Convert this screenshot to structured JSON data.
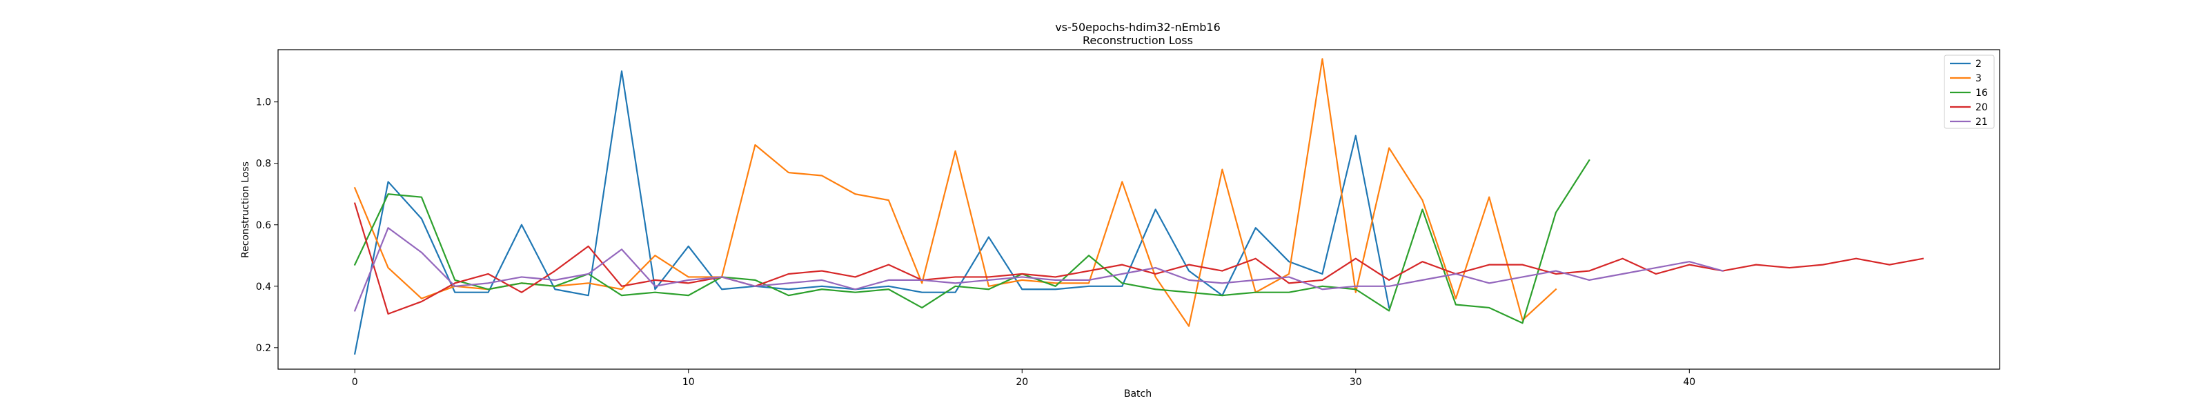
{
  "chart_data": {
    "type": "line",
    "title": "vs-50epochs-hdim32-nEmb16",
    "subtitle": "Reconstruction Loss",
    "xlabel": "Batch",
    "ylabel": "Reconstruction Loss",
    "xlim": [
      -2.3,
      49.3
    ],
    "ylim": [
      0.13,
      1.17
    ],
    "xticks": [
      0,
      10,
      20,
      30,
      40
    ],
    "yticks": [
      0.2,
      0.4,
      0.6,
      0.8,
      1.0
    ],
    "yticklabels": [
      "0.2",
      "0.4",
      "0.6",
      "0.8",
      "1.0"
    ],
    "grid": false,
    "legend_position": "top-right",
    "series": [
      {
        "name": "2",
        "color": "#1f77b4",
        "x": [
          0,
          1,
          2,
          3,
          4,
          5,
          6,
          7,
          8,
          9,
          10,
          11,
          12,
          13,
          14,
          15,
          16,
          17,
          18,
          19,
          20,
          21,
          22,
          23,
          24,
          25,
          26,
          27,
          28,
          29,
          30,
          31
        ],
        "values": [
          0.18,
          0.74,
          0.62,
          0.38,
          0.38,
          0.6,
          0.39,
          0.37,
          1.1,
          0.39,
          0.53,
          0.39,
          0.4,
          0.39,
          0.4,
          0.39,
          0.4,
          0.38,
          0.38,
          0.56,
          0.39,
          0.39,
          0.4,
          0.4,
          0.65,
          0.45,
          0.37,
          0.59,
          0.48,
          0.44,
          0.89,
          0.33
        ]
      },
      {
        "name": "3",
        "color": "#ff7f0e",
        "x": [
          0,
          1,
          2,
          3,
          4,
          5,
          6,
          7,
          8,
          9,
          10,
          11,
          12,
          13,
          14,
          15,
          16,
          17,
          18,
          19,
          20,
          21,
          22,
          23,
          24,
          25,
          26,
          27,
          28,
          29,
          30,
          31,
          32,
          33,
          34,
          35,
          36
        ],
        "values": [
          0.72,
          0.46,
          0.36,
          0.4,
          0.39,
          0.41,
          0.4,
          0.41,
          0.39,
          0.5,
          0.43,
          0.43,
          0.86,
          0.77,
          0.76,
          0.7,
          0.68,
          0.41,
          0.84,
          0.4,
          0.42,
          0.41,
          0.41,
          0.74,
          0.43,
          0.27,
          0.78,
          0.38,
          0.44,
          1.14,
          0.38,
          0.85,
          0.68,
          0.36,
          0.69,
          0.29,
          0.39
        ]
      },
      {
        "name": "16",
        "color": "#2ca02c",
        "x": [
          0,
          1,
          2,
          3,
          4,
          5,
          6,
          7,
          8,
          9,
          10,
          11,
          12,
          13,
          14,
          15,
          16,
          17,
          18,
          19,
          20,
          21,
          22,
          23,
          24,
          25,
          26,
          27,
          28,
          29,
          30,
          31,
          32,
          33,
          34,
          35,
          36,
          37
        ],
        "values": [
          0.47,
          0.7,
          0.69,
          0.42,
          0.39,
          0.41,
          0.4,
          0.44,
          0.37,
          0.38,
          0.37,
          0.43,
          0.42,
          0.37,
          0.39,
          0.38,
          0.39,
          0.33,
          0.4,
          0.39,
          0.44,
          0.4,
          0.5,
          0.41,
          0.39,
          0.38,
          0.37,
          0.38,
          0.38,
          0.4,
          0.39,
          0.32,
          0.65,
          0.34,
          0.33,
          0.28,
          0.64,
          0.81
        ]
      },
      {
        "name": "20",
        "color": "#d62728",
        "x": [
          0,
          1,
          2,
          3,
          4,
          5,
          6,
          7,
          8,
          9,
          10,
          11,
          12,
          13,
          14,
          15,
          16,
          17,
          18,
          19,
          20,
          21,
          22,
          23,
          24,
          25,
          26,
          27,
          28,
          29,
          30,
          31,
          32,
          33,
          34,
          35,
          36,
          37,
          38,
          39,
          40,
          41,
          42,
          43,
          44,
          45,
          46,
          47
        ],
        "values": [
          0.67,
          0.31,
          0.35,
          0.41,
          0.44,
          0.38,
          0.45,
          0.53,
          0.4,
          0.42,
          0.41,
          0.43,
          0.4,
          0.44,
          0.45,
          0.43,
          0.47,
          0.42,
          0.43,
          0.43,
          0.44,
          0.43,
          0.45,
          0.47,
          0.44,
          0.47,
          0.45,
          0.49,
          0.41,
          0.42,
          0.49,
          0.42,
          0.48,
          0.44,
          0.47,
          0.47,
          0.44,
          0.45,
          0.49,
          0.44,
          0.47,
          0.45,
          0.47,
          0.46,
          0.47,
          0.49,
          0.47,
          0.49
        ]
      },
      {
        "name": "21",
        "color": "#9467bd",
        "x": [
          0,
          1,
          2,
          3,
          4,
          5,
          6,
          7,
          8,
          9,
          10,
          11,
          12,
          13,
          14,
          15,
          16,
          17,
          18,
          19,
          20,
          21,
          22,
          23,
          24,
          25,
          26,
          27,
          28,
          29,
          30,
          31,
          32,
          33,
          34,
          35,
          36,
          37,
          38,
          39,
          40,
          41
        ],
        "values": [
          0.32,
          0.59,
          0.51,
          0.4,
          0.41,
          0.43,
          0.42,
          0.44,
          0.52,
          0.4,
          0.42,
          0.43,
          0.4,
          0.41,
          0.42,
          0.39,
          0.42,
          0.42,
          0.41,
          0.42,
          0.43,
          0.42,
          0.42,
          0.44,
          0.46,
          0.42,
          0.41,
          0.42,
          0.43,
          0.39,
          0.4,
          0.4,
          0.42,
          0.44,
          0.41,
          0.43,
          0.45,
          0.42,
          0.44,
          0.46,
          0.48,
          0.45
        ]
      }
    ]
  }
}
